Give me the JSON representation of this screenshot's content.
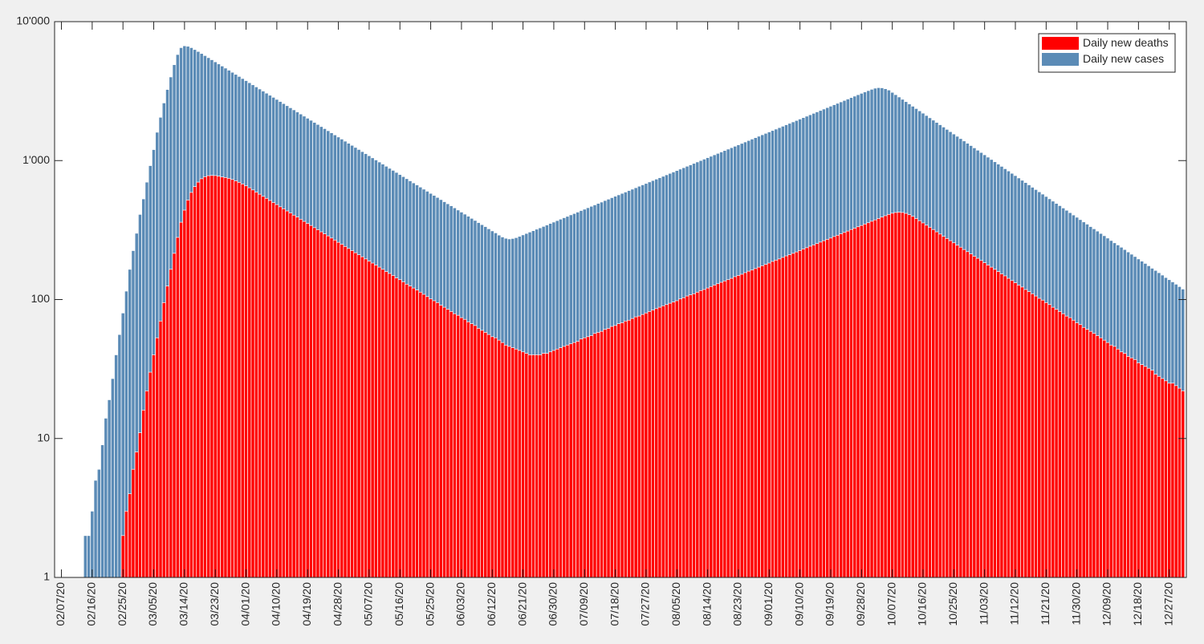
{
  "chart_data": {
    "type": "bar",
    "log_scale_y": true,
    "grid": false,
    "legend": "northeast",
    "x": [
      "02/14/20",
      "02/15/20",
      "02/16/20",
      "02/17/20",
      "02/18/20",
      "02/19/20",
      "02/20/20",
      "02/21/20",
      "02/22/20",
      "02/23/20",
      "02/24/20",
      "02/25/20",
      "02/26/20",
      "02/27/20",
      "02/28/20",
      "02/29/20",
      "03/01/20",
      "03/02/20",
      "03/03/20",
      "03/04/20",
      "03/05/20",
      "03/06/20",
      "03/07/20",
      "03/08/20",
      "03/09/20",
      "03/10/20",
      "03/11/20",
      "03/12/20",
      "03/13/20",
      "03/14/20",
      "03/15/20",
      "03/16/20",
      "03/17/20",
      "03/18/20",
      "03/19/20",
      "03/20/20",
      "03/21/20",
      "03/22/20",
      "03/23/20",
      "03/24/20",
      "03/25/20",
      "03/26/20",
      "03/27/20",
      "03/28/20",
      "03/29/20",
      "03/30/20",
      "03/31/20",
      "04/01/20",
      "04/02/20",
      "04/03/20",
      "04/04/20",
      "04/05/20",
      "04/06/20",
      "04/07/20",
      "04/08/20",
      "04/09/20",
      "04/10/20",
      "04/11/20",
      "04/12/20",
      "04/13/20",
      "04/14/20",
      "04/15/20",
      "04/16/20",
      "04/17/20",
      "04/18/20",
      "04/19/20",
      "04/20/20",
      "04/21/20",
      "04/22/20",
      "04/23/20",
      "04/24/20",
      "04/25/20",
      "04/26/20",
      "04/27/20",
      "04/28/20",
      "04/29/20",
      "04/30/20",
      "05/01/20",
      "05/02/20",
      "05/03/20",
      "05/04/20",
      "05/05/20",
      "05/06/20",
      "05/07/20",
      "05/08/20",
      "05/09/20",
      "05/10/20",
      "05/11/20",
      "05/12/20",
      "05/13/20",
      "05/14/20",
      "05/15/20",
      "05/16/20",
      "05/17/20",
      "05/18/20",
      "05/19/20",
      "05/20/20",
      "05/21/20",
      "05/22/20",
      "05/23/20",
      "05/24/20",
      "05/25/20",
      "05/26/20",
      "05/27/20",
      "05/28/20",
      "05/29/20",
      "05/30/20",
      "05/31/20",
      "06/01/20",
      "06/02/20",
      "06/03/20",
      "06/04/20",
      "06/05/20",
      "06/06/20",
      "06/07/20",
      "06/08/20",
      "06/09/20",
      "06/10/20",
      "06/11/20",
      "06/12/20",
      "06/13/20",
      "06/14/20",
      "06/15/20",
      "06/16/20",
      "06/17/20",
      "06/18/20",
      "06/19/20",
      "06/20/20",
      "06/21/20",
      "06/22/20",
      "06/23/20",
      "06/24/20",
      "06/25/20",
      "06/26/20",
      "06/27/20",
      "06/28/20",
      "06/29/20",
      "06/30/20",
      "07/01/20",
      "07/02/20",
      "07/03/20",
      "07/04/20",
      "07/05/20",
      "07/06/20",
      "07/07/20",
      "07/08/20",
      "07/09/20",
      "07/10/20",
      "07/11/20",
      "07/12/20",
      "07/13/20",
      "07/14/20",
      "07/15/20",
      "07/16/20",
      "07/17/20",
      "07/18/20",
      "07/19/20",
      "07/20/20",
      "07/21/20",
      "07/22/20",
      "07/23/20",
      "07/24/20",
      "07/25/20",
      "07/26/20",
      "07/27/20",
      "07/28/20",
      "07/29/20",
      "07/30/20",
      "07/31/20",
      "08/01/20",
      "08/02/20",
      "08/03/20",
      "08/04/20",
      "08/05/20",
      "08/06/20",
      "08/07/20",
      "08/08/20",
      "08/09/20",
      "08/10/20",
      "08/11/20",
      "08/12/20",
      "08/13/20",
      "08/14/20",
      "08/15/20",
      "08/16/20",
      "08/17/20",
      "08/18/20",
      "08/19/20",
      "08/20/20",
      "08/21/20",
      "08/22/20",
      "08/23/20",
      "08/24/20",
      "08/25/20",
      "08/26/20",
      "08/27/20",
      "08/28/20",
      "08/29/20",
      "08/30/20",
      "08/31/20",
      "09/01/20",
      "09/02/20",
      "09/03/20",
      "09/04/20",
      "09/05/20",
      "09/06/20",
      "09/07/20",
      "09/08/20",
      "09/09/20",
      "09/10/20",
      "09/11/20",
      "09/12/20",
      "09/13/20",
      "09/14/20",
      "09/15/20",
      "09/16/20",
      "09/17/20",
      "09/18/20",
      "09/19/20",
      "09/20/20",
      "09/21/20",
      "09/22/20",
      "09/23/20",
      "09/24/20",
      "09/25/20",
      "09/26/20",
      "09/27/20",
      "09/28/20",
      "09/29/20",
      "09/30/20",
      "10/01/20",
      "10/02/20",
      "10/03/20",
      "10/04/20",
      "10/05/20",
      "10/06/20",
      "10/07/20",
      "10/08/20",
      "10/09/20",
      "10/10/20",
      "10/11/20",
      "10/12/20",
      "10/13/20",
      "10/14/20",
      "10/15/20",
      "10/16/20",
      "10/17/20",
      "10/18/20",
      "10/19/20",
      "10/20/20",
      "10/21/20",
      "10/22/20",
      "10/23/20",
      "10/24/20",
      "10/25/20",
      "10/26/20",
      "10/27/20",
      "10/28/20",
      "10/29/20",
      "10/30/20",
      "10/31/20",
      "11/01/20",
      "11/02/20",
      "11/03/20",
      "11/04/20",
      "11/05/20",
      "11/06/20",
      "11/07/20",
      "11/08/20",
      "11/09/20",
      "11/10/20",
      "11/11/20",
      "11/12/20",
      "11/13/20",
      "11/14/20",
      "11/15/20",
      "11/16/20",
      "11/17/20",
      "11/18/20",
      "11/19/20",
      "11/20/20",
      "11/21/20",
      "11/22/20",
      "11/23/20",
      "11/24/20",
      "11/25/20",
      "11/26/20",
      "11/27/20",
      "11/28/20",
      "11/29/20",
      "11/30/20",
      "12/01/20",
      "12/02/20",
      "12/03/20",
      "12/04/20",
      "12/05/20",
      "12/06/20",
      "12/07/20",
      "12/08/20",
      "12/09/20",
      "12/10/20",
      "12/11/20",
      "12/12/20",
      "12/13/20",
      "12/14/20",
      "12/15/20",
      "12/16/20",
      "12/17/20",
      "12/18/20",
      "12/19/20",
      "12/20/20",
      "12/21/20",
      "12/22/20",
      "12/23/20",
      "12/24/20",
      "12/25/20",
      "12/26/20",
      "12/27/20",
      "12/28/20",
      "12/29/20",
      "12/30/20",
      "12/31/20"
    ],
    "series": [
      {
        "name": "Daily new deaths",
        "color": "#ff0000",
        "values": [
          null,
          null,
          null,
          null,
          null,
          null,
          null,
          null,
          null,
          null,
          null,
          2,
          3,
          4,
          6,
          8,
          11,
          16,
          22,
          30,
          40,
          53,
          70,
          95,
          125,
          165,
          215,
          280,
          360,
          440,
          520,
          590,
          650,
          700,
          740,
          765,
          778,
          782,
          780,
          772,
          762,
          755,
          745,
          731,
          714,
          697,
          678,
          658,
          637,
          615,
          593,
          573,
          553,
          535,
          516,
          499,
          482,
          465,
          450,
          434,
          420,
          405,
          392,
          378,
          365,
          353,
          341,
          329,
          318,
          307,
          297,
          287,
          277,
          268,
          258,
          250,
          241,
          233,
          225,
          217,
          210,
          203,
          196,
          189,
          183,
          177,
          171,
          165,
          159,
          154,
          149,
          143,
          139,
          134,
          129,
          125,
          121,
          117,
          113,
          109,
          105,
          101,
          98,
          95,
          91,
          88,
          85,
          82,
          79,
          77,
          74,
          72,
          69,
          67,
          65,
          62,
          60,
          58,
          56,
          54,
          53,
          51,
          49,
          47,
          46,
          45,
          44,
          43,
          42,
          41,
          40,
          40,
          40,
          40,
          41,
          41,
          42,
          43,
          44,
          45,
          46,
          47,
          48,
          49,
          50,
          52,
          53,
          54,
          55,
          57,
          58,
          59,
          61,
          62,
          64,
          65,
          67,
          68,
          70,
          71,
          73,
          75,
          76,
          78,
          80,
          82,
          84,
          86,
          88,
          90,
          92,
          94,
          96,
          98,
          101,
          103,
          106,
          108,
          110,
          113,
          116,
          118,
          121,
          124,
          127,
          130,
          133,
          136,
          139,
          142,
          146,
          149,
          152,
          156,
          160,
          163,
          167,
          171,
          175,
          179,
          183,
          188,
          192,
          196,
          201,
          206,
          210,
          215,
          220,
          225,
          231,
          236,
          242,
          247,
          253,
          259,
          265,
          271,
          277,
          284,
          290,
          297,
          304,
          311,
          319,
          326,
          334,
          341,
          349,
          357,
          366,
          374,
          383,
          392,
          401,
          410,
          418,
          423,
          425,
          423,
          417,
          408,
          397,
          383,
          369,
          356,
          343,
          331,
          319,
          307,
          296,
          285,
          275,
          265,
          256,
          246,
          238,
          229,
          221,
          213,
          205,
          198,
          191,
          184,
          177,
          171,
          165,
          159,
          153,
          148,
          142,
          137,
          132,
          127,
          123,
          118,
          114,
          110,
          106,
          102,
          99,
          95,
          92,
          88,
          85,
          82,
          79,
          76,
          74,
          71,
          68,
          66,
          63,
          61,
          59,
          57,
          55,
          53,
          51,
          49,
          47,
          46,
          44,
          42,
          41,
          39,
          38,
          37,
          35,
          34,
          33,
          32,
          31,
          29,
          28,
          27,
          26,
          25,
          25,
          24,
          23,
          22
        ]
      },
      {
        "name": "Daily new cases",
        "color": "#5b8bb6",
        "values": [
          2,
          2,
          3,
          5,
          6,
          9,
          14,
          19,
          27,
          40,
          56,
          80,
          115,
          165,
          225,
          300,
          410,
          530,
          700,
          920,
          1200,
          1600,
          2050,
          2600,
          3250,
          4000,
          4900,
          5800,
          6500,
          6700,
          6650,
          6500,
          6300,
          6100,
          5900,
          5700,
          5506,
          5319,
          5138,
          4963,
          4795,
          4632,
          4474,
          4322,
          4175,
          4033,
          3896,
          3764,
          3636,
          3512,
          3393,
          3277,
          3166,
          3058,
          2954,
          2854,
          2757,
          2663,
          2572,
          2485,
          2400,
          2319,
          2240,
          2164,
          2090,
          2019,
          1951,
          1884,
          1820,
          1758,
          1699,
          1641,
          1585,
          1531,
          1479,
          1429,
          1380,
          1333,
          1288,
          1244,
          1202,
          1161,
          1122,
          1084,
          1047,
          1011,
          977,
          944,
          911,
          880,
          851,
          822,
          794,
          767,
          741,
          715,
          691,
          668,
          645,
          623,
          602,
          581,
          562,
          543,
          524,
          506,
          489,
          473,
          457,
          441,
          426,
          412,
          398,
          384,
          371,
          358,
          346,
          335,
          323,
          312,
          302,
          291,
          282,
          276,
          273,
          275,
          279,
          285,
          292,
          299,
          306,
          313,
          321,
          328,
          336,
          344,
          353,
          361,
          370,
          379,
          388,
          397,
          407,
          416,
          426,
          437,
          447,
          458,
          469,
          480,
          492,
          503,
          516,
          528,
          541,
          554,
          567,
          581,
          594,
          609,
          623,
          638,
          654,
          669,
          685,
          702,
          719,
          736,
          753,
          771,
          790,
          809,
          828,
          848,
          869,
          889,
          911,
          932,
          955,
          978,
          1001,
          1025,
          1050,
          1075,
          1101,
          1127,
          1154,
          1182,
          1210,
          1239,
          1269,
          1299,
          1330,
          1362,
          1395,
          1429,
          1463,
          1498,
          1534,
          1571,
          1608,
          1647,
          1686,
          1727,
          1768,
          1811,
          1854,
          1899,
          1944,
          1991,
          2039,
          2088,
          2138,
          2189,
          2242,
          2295,
          2351,
          2407,
          2465,
          2524,
          2584,
          2646,
          2710,
          2775,
          2842,
          2910,
          2980,
          3050,
          3120,
          3190,
          3260,
          3320,
          3350,
          3340,
          3290,
          3220,
          3099,
          2982,
          2870,
          2762,
          2658,
          2558,
          2462,
          2370,
          2281,
          2195,
          2112,
          2033,
          1956,
          1883,
          1812,
          1744,
          1678,
          1615,
          1554,
          1496,
          1440,
          1385,
          1333,
          1283,
          1235,
          1188,
          1144,
          1101,
          1059,
          1019,
          981,
          944,
          909,
          874,
          842,
          810,
          780,
          750,
          722,
          695,
          669,
          643,
          619,
          596,
          574,
          552,
          531,
          511,
          492,
          474,
          456,
          439,
          422,
          406,
          391,
          376,
          362,
          349,
          335,
          323,
          311,
          299,
          288,
          277,
          266,
          256,
          247,
          238,
          229,
          220,
          212,
          204,
          196,
          189,
          182,
          175,
          168,
          162,
          156,
          150,
          144,
          139,
          134,
          129,
          124,
          119
        ]
      }
    ],
    "xlim": [
      "02/05/20",
      "01/01/21"
    ],
    "xticks": [
      "02/07/20",
      "02/16/20",
      "02/25/20",
      "03/05/20",
      "03/14/20",
      "03/23/20",
      "04/01/20",
      "04/10/20",
      "04/19/20",
      "04/28/20",
      "05/07/20",
      "05/16/20",
      "05/25/20",
      "06/03/20",
      "06/12/20",
      "06/21/20",
      "06/30/20",
      "07/09/20",
      "07/18/20",
      "07/27/20",
      "08/05/20",
      "08/14/20",
      "08/23/20",
      "09/01/20",
      "09/10/20",
      "09/19/20",
      "09/28/20",
      "10/07/20",
      "10/16/20",
      "10/25/20",
      "11/03/20",
      "11/12/20",
      "11/21/20",
      "11/30/20",
      "12/09/20",
      "12/18/20",
      "12/27/20"
    ],
    "ylim": [
      1,
      10000
    ],
    "yticks": [
      1,
      10,
      100,
      {
        "value": 1000,
        "label": "1'000"
      },
      {
        "value": 10000,
        "label": "10'000"
      }
    ]
  }
}
